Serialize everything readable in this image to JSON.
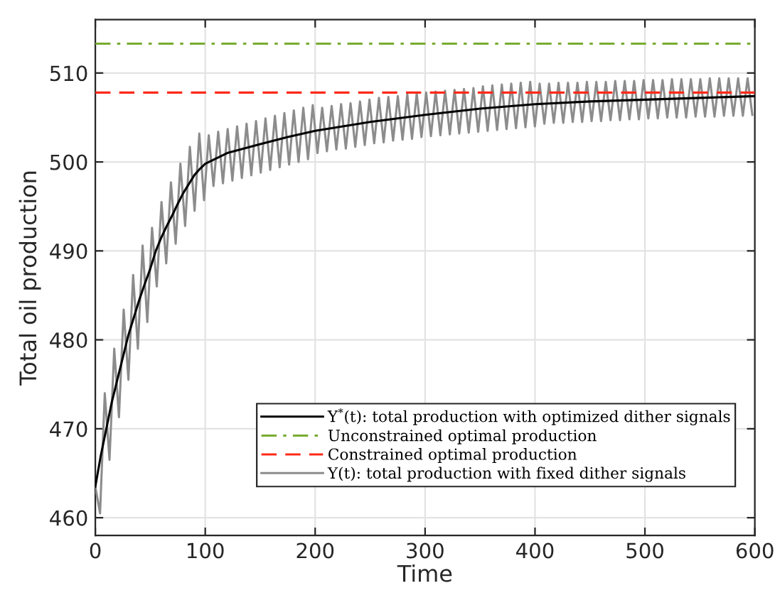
{
  "chart_data": {
    "type": "line",
    "xlabel": "Time",
    "ylabel": "Total oil production",
    "xlim": [
      0,
      600
    ],
    "xticks": [
      0,
      100,
      200,
      300,
      400,
      500,
      600
    ],
    "ylim": [
      458,
      516
    ],
    "yticks": [
      460,
      470,
      480,
      490,
      500,
      510
    ],
    "grid": true,
    "legend": "bottom right",
    "marker": "none",
    "series": [
      {
        "name": "Y$^{*}$(t): total production with optimized dither signals",
        "color": "#000000",
        "line_style": "solid",
        "x": [
          0,
          5,
          10,
          15,
          20,
          25,
          30,
          35,
          40,
          45,
          50,
          55,
          60,
          65,
          70,
          75,
          80,
          85,
          90,
          95,
          100,
          110,
          120,
          135,
          150,
          175,
          200,
          225,
          250,
          275,
          300,
          350,
          400,
          450,
          500,
          550,
          600
        ],
        "values": [
          463.5,
          467,
          470,
          473,
          475.5,
          478,
          480.5,
          482.5,
          484.5,
          486.3,
          488,
          490,
          491.5,
          492.8,
          494,
          495.3,
          496.5,
          497.5,
          498.5,
          499.2,
          499.8,
          500.4,
          501,
          501.5,
          502,
          502.8,
          503.5,
          504,
          504.5,
          504.9,
          505.3,
          506,
          506.5,
          506.8,
          507,
          507.2,
          507.4
        ]
      },
      {
        "name": "Unconstrained optimal production",
        "color": "#77ac30",
        "line_style": "dashdot",
        "x": [
          0,
          600
        ],
        "values": [
          513.3,
          513.3
        ]
      },
      {
        "name": "Constrained optimal production",
        "color": "#ff2a1a",
        "line_style": "dashed",
        "x": [
          0,
          600
        ],
        "values": [
          507.8,
          507.8
        ]
      },
      {
        "name": "Y(t): total production with fixed dither signals",
        "color": "#8c8c8c",
        "line_style": "solid",
        "x": [
          0,
          4.3,
          8.6,
          12.9,
          17.2,
          21.5,
          25.8,
          30.1,
          34.4,
          38.7,
          43,
          47.3,
          51.6,
          55.9,
          60.2,
          64.5,
          68.8,
          73.1,
          77.4,
          81.7,
          86,
          90.3,
          94.6,
          98.9,
          103.2,
          107.5,
          111.8,
          116.1,
          120.4,
          124.7,
          129,
          133.3,
          137.6,
          141.9,
          146.2,
          150.5,
          154.8,
          159.1,
          163.4,
          167.7,
          172,
          176.3,
          180.6,
          184.9,
          189.2,
          193.5,
          197.8,
          202.1,
          206.4,
          210.7,
          215,
          219.3,
          223.6,
          227.9,
          232.2,
          236.5,
          240.8,
          245.1,
          249.4,
          253.7,
          258,
          262.3,
          266.6,
          270.9,
          275.2,
          279.5,
          283.8,
          288.1,
          292.4,
          296.7,
          301,
          305.3,
          309.6,
          313.9,
          318.2,
          322.5,
          326.8,
          331.1,
          335.4,
          339.7,
          344,
          348.3,
          352.6,
          356.9,
          361.2,
          365.5,
          369.8,
          374.1,
          378.4,
          382.7,
          387,
          391.3,
          395.6,
          399.9,
          404.2,
          408.5,
          412.8,
          417.1,
          421.4,
          425.7,
          430,
          434.3,
          438.6,
          442.9,
          447.2,
          451.5,
          455.8,
          460.1,
          464.4,
          468.7,
          473,
          477.3,
          481.6,
          485.9,
          490.2,
          494.5,
          498.8,
          503.1,
          507.4,
          511.7,
          516,
          520.3,
          524.6,
          528.9,
          533.2,
          537.5,
          541.8,
          546.1,
          550.4,
          554.7,
          559,
          563.3,
          567.6,
          571.9,
          576.2,
          580.5,
          584.8,
          589.1,
          593.4,
          597.7
        ],
        "values": [
          463.5,
          460.5,
          474,
          466.5,
          479,
          471.3,
          483.4,
          475.5,
          487.3,
          479,
          490.6,
          482,
          492.6,
          486,
          495.5,
          488.6,
          497.7,
          490.8,
          499.8,
          492.8,
          501.7,
          494.5,
          503.2,
          495.7,
          503,
          497.3,
          503.4,
          497.6,
          503.7,
          497.9,
          504,
          498.2,
          504.3,
          498.5,
          504.6,
          498.8,
          504.9,
          499.1,
          505.2,
          499.4,
          505.5,
          499.7,
          505.8,
          500,
          506.1,
          500.3,
          506.4,
          501,
          506.1,
          501.2,
          506.3,
          501.4,
          506.5,
          501.5,
          506.6,
          501.7,
          506.8,
          501.9,
          507,
          502.1,
          507.2,
          502.2,
          507.3,
          502.4,
          507.4,
          502.5,
          507.6,
          502.6,
          507.7,
          502.8,
          507.8,
          502.9,
          507.9,
          503,
          508,
          503.1,
          508.1,
          503.2,
          508.2,
          503.3,
          508.3,
          503.4,
          508.5,
          503.5,
          508.6,
          503.6,
          508.7,
          503.7,
          508.8,
          503.8,
          508.9,
          503.9,
          509,
          504,
          508.8,
          504.3,
          508.8,
          504.4,
          508.9,
          504.4,
          508.9,
          504.5,
          508.9,
          504.5,
          509,
          504.6,
          509,
          504.6,
          509,
          504.7,
          509.1,
          504.7,
          509.1,
          504.8,
          509.1,
          504.8,
          509.2,
          504.9,
          509.2,
          504.9,
          509.2,
          505,
          509.3,
          505,
          509.3,
          505,
          509.3,
          505.1,
          509.3,
          505.1,
          509.4,
          505.1,
          509.4,
          505.2,
          509.4,
          505.2,
          509.4,
          505.2,
          509.4,
          505.3
        ]
      }
    ]
  }
}
